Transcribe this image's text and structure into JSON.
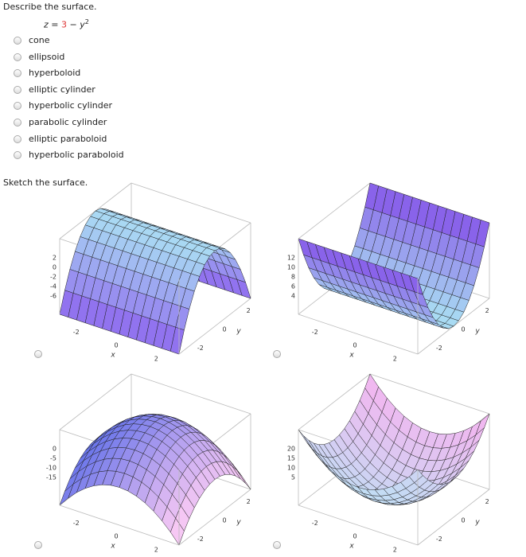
{
  "question": {
    "prompt": "Describe the surface.",
    "equation": {
      "lhs": "z =",
      "constant": "3",
      "term": "− y",
      "exponent": "2"
    },
    "options": [
      "cone",
      "ellipsoid",
      "hyperboloid",
      "elliptic cylinder",
      "hyperbolic cylinder",
      "parabolic cylinder",
      "elliptic paraboloid",
      "hyperbolic paraboloid"
    ]
  },
  "sketch": {
    "prompt": "Sketch the surface.",
    "plots": [
      {
        "z_ticks": [
          "2",
          "0",
          "-2",
          "-4",
          "-6"
        ],
        "x_ticks": [
          "-2",
          "0",
          "2"
        ],
        "y_ticks": [
          "-2",
          "0",
          "2"
        ],
        "x_label": "x",
        "y_label": "y"
      },
      {
        "z_ticks": [
          "12",
          "10",
          "8",
          "6",
          "4"
        ],
        "x_ticks": [
          "-2",
          "0",
          "2"
        ],
        "y_ticks": [
          "-2",
          "0",
          "2"
        ],
        "x_label": "x",
        "y_label": "y"
      },
      {
        "z_ticks": [
          "0",
          "-5",
          "-10",
          "-15"
        ],
        "x_ticks": [
          "-2",
          "0",
          "2"
        ],
        "y_ticks": [
          "-2",
          "0",
          "2"
        ],
        "x_label": "x",
        "y_label": "y"
      },
      {
        "z_ticks": [
          "20",
          "15",
          "10",
          "5"
        ],
        "x_ticks": [
          "-2",
          "0",
          "2"
        ],
        "y_ticks": [
          "-2",
          "0",
          "2"
        ],
        "x_label": "x",
        "y_label": "y"
      }
    ]
  }
}
